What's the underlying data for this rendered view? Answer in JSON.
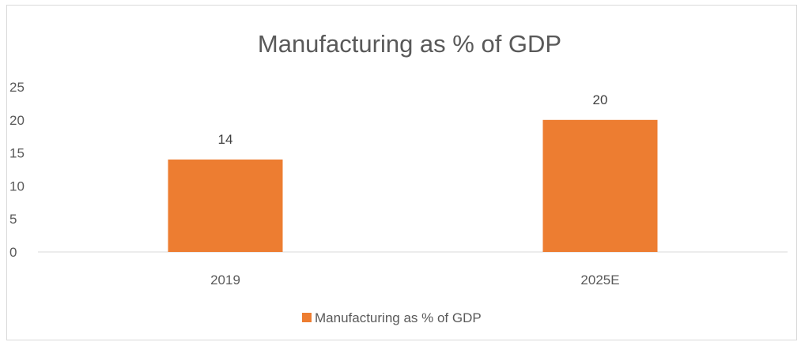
{
  "chart_data": {
    "type": "bar",
    "title": "Manufacturing as % of GDP",
    "categories": [
      "2019",
      "2025E"
    ],
    "series": [
      {
        "name": "Manufacturing as % of GDP",
        "values": [
          14,
          20
        ],
        "color": "#ED7D31"
      }
    ],
    "ylim": [
      0,
      25
    ],
    "yticks": [
      0,
      5,
      10,
      15,
      20,
      25
    ],
    "grid": false,
    "data_labels": true,
    "legend": "bottom"
  }
}
